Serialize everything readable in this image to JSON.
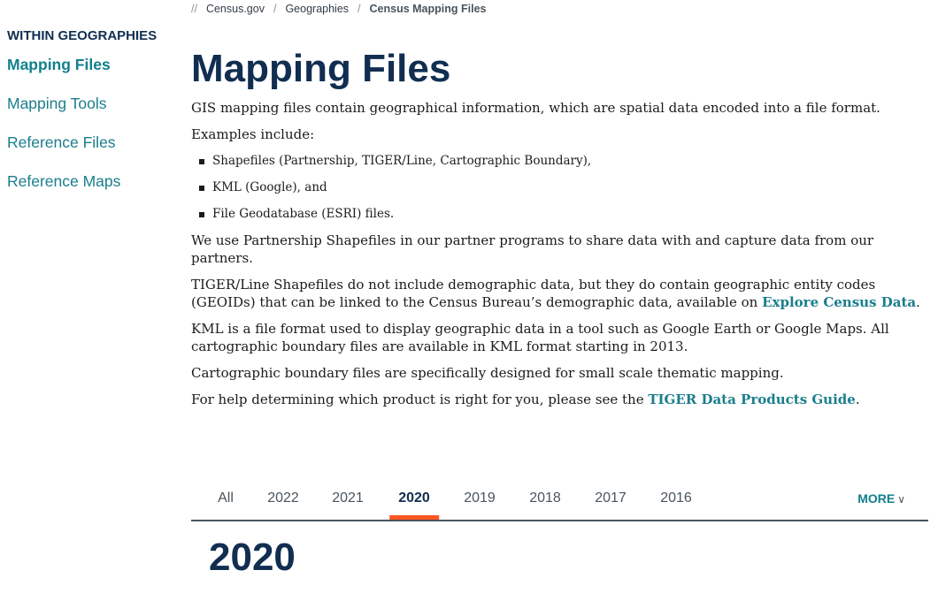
{
  "breadcrumb": {
    "prefix": "//",
    "items": [
      "Census.gov",
      "Geographies",
      "Census Mapping Files"
    ],
    "sep": "/"
  },
  "sidebar": {
    "heading": "WITHIN GEOGRAPHIES",
    "items": [
      {
        "label": "Mapping Files",
        "active": true
      },
      {
        "label": "Mapping Tools"
      },
      {
        "label": "Reference Files"
      },
      {
        "label": "Reference Maps"
      }
    ]
  },
  "main": {
    "title": "Mapping Files",
    "intro": "GIS mapping files contain geographical information, which are spatial data encoded into a file format.",
    "examples_label": "Examples include:",
    "examples": [
      "Shapefiles (Partnership, TIGER/Line, Cartographic Boundary),",
      "KML (Google), and",
      "File Geodatabase (ESRI) files."
    ],
    "p_partnership": "We use Partnership Shapefiles in our partner programs to share data with and capture data from our partners.",
    "p_tiger": "TIGER/Line Shapefiles do not include demographic data, but they do contain geographic entity codes (GEOIDs) that can be linked to the Census Bureau’s demographic data, available on ",
    "p_tiger_link": "Explore Census Data",
    "p_tiger_end": ".",
    "p_kml": "KML is a file format used to display geographic data in a tool such as Google Earth or Google Maps. All cartographic boundary files are available in KML format starting in 2013.",
    "p_carto": "Cartographic boundary files are specifically designed for small scale thematic mapping.",
    "p_help": "For help determining which product is right for you, please see the ",
    "p_help_link": "TIGER Data Products Guide",
    "p_help_end": "."
  },
  "tabs": {
    "items": [
      "All",
      "2022",
      "2021",
      "2020",
      "2019",
      "2018",
      "2017",
      "2016"
    ],
    "active": "2020",
    "more": "MORE",
    "accent": "#ff5722"
  },
  "section_title": "2020"
}
